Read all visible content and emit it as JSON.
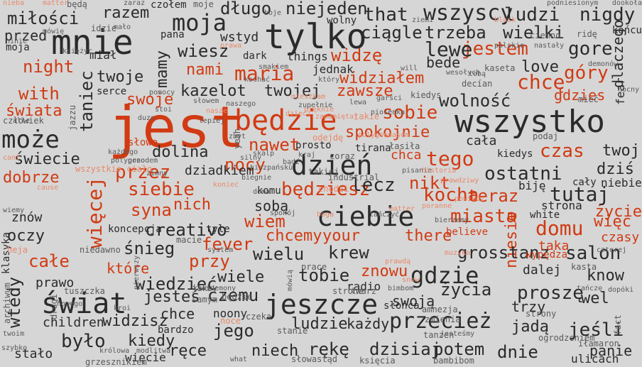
{
  "colors": {
    "background": "#d6d6d6",
    "accent": "#d13a12",
    "dark": "#2b2b2b",
    "light_dark": "#5a5a5a",
    "light_accent": "#e8896a"
  },
  "words": [
    {
      "text": "jest",
      "color": "accent"
    },
    {
      "text": "mnie",
      "color": "dark"
    },
    {
      "text": "tylko",
      "color": "dark"
    },
    {
      "text": "wszystko",
      "color": "dark"
    },
    {
      "text": "będzie",
      "color": "accent"
    },
    {
      "text": "dzień",
      "color": "dark"
    },
    {
      "text": "ciebie",
      "color": "dark"
    },
    {
      "text": "świat",
      "color": "dark"
    },
    {
      "text": "jeszcze",
      "color": "dark"
    },
    {
      "text": "gdzie",
      "color": "dark"
    },
    {
      "text": "przecież",
      "color": "dark"
    },
    {
      "text": "może",
      "color": "dark"
    },
    {
      "text": "moja",
      "color": "dark"
    },
    {
      "text": "wszyscy",
      "color": "dark"
    },
    {
      "text": "długo",
      "color": "dark"
    },
    {
      "text": "niejeden",
      "color": "dark"
    },
    {
      "text": "miłości",
      "color": "dark"
    },
    {
      "text": "razem",
      "color": "dark"
    },
    {
      "text": "that",
      "color": "dark"
    },
    {
      "text": "ludzi",
      "color": "dark"
    },
    {
      "text": "nigdy",
      "color": "dark"
    },
    {
      "text": "jestem",
      "color": "accent"
    },
    {
      "text": "lewe",
      "color": "dark"
    },
    {
      "text": "ciągle",
      "color": "dark"
    },
    {
      "text": "trzeba",
      "color": "dark"
    },
    {
      "text": "wielki",
      "color": "dark"
    },
    {
      "text": "gore",
      "color": "dark"
    },
    {
      "text": "przed",
      "color": "dark"
    },
    {
      "text": "wiesz",
      "color": "dark"
    },
    {
      "text": "widzę",
      "color": "accent"
    },
    {
      "text": "night",
      "color": "accent"
    },
    {
      "text": "maria",
      "color": "accent"
    },
    {
      "text": "nami",
      "color": "accent"
    },
    {
      "text": "twoje",
      "color": "dark"
    },
    {
      "text": "mamy",
      "color": "dark"
    },
    {
      "text": "widziałem",
      "color": "accent"
    },
    {
      "text": "chcę",
      "color": "accent"
    },
    {
      "text": "góry",
      "color": "accent"
    },
    {
      "text": "love",
      "color": "dark"
    },
    {
      "text": "dlaczego",
      "color": "dark"
    },
    {
      "text": "with",
      "color": "accent"
    },
    {
      "text": "taniec",
      "color": "dark"
    },
    {
      "text": "kazelot",
      "color": "dark"
    },
    {
      "text": "twojej",
      "color": "dark"
    },
    {
      "text": "zawsze",
      "color": "accent"
    },
    {
      "text": "wolność",
      "color": "dark"
    },
    {
      "text": "gdzies",
      "color": "accent"
    },
    {
      "text": "świata",
      "color": "accent"
    },
    {
      "text": "swoje",
      "color": "accent"
    },
    {
      "text": "sobie",
      "color": "accent"
    },
    {
      "text": "spokojnie",
      "color": "accent"
    },
    {
      "text": "czas",
      "color": "accent"
    },
    {
      "text": "twoj",
      "color": "dark"
    },
    {
      "text": "nawet",
      "color": "accent"
    },
    {
      "text": "dolina",
      "color": "dark"
    },
    {
      "text": "tego",
      "color": "accent"
    },
    {
      "text": "świecie",
      "color": "dark"
    },
    {
      "text": "nocy",
      "color": "accent"
    },
    {
      "text": "chca",
      "color": "accent"
    },
    {
      "text": "ostatni",
      "color": "dark"
    },
    {
      "text": "dziś",
      "color": "dark"
    },
    {
      "text": "przez",
      "color": "accent"
    },
    {
      "text": "siebie",
      "color": "accent"
    },
    {
      "text": "będziesz",
      "color": "accent"
    },
    {
      "text": "lecz",
      "color": "dark"
    },
    {
      "text": "nikt",
      "color": "accent"
    },
    {
      "text": "kocha",
      "color": "accent"
    },
    {
      "text": "teraz",
      "color": "accent"
    },
    {
      "text": "tutaj",
      "color": "dark"
    },
    {
      "text": "dobrze",
      "color": "accent"
    },
    {
      "text": "więcej",
      "color": "accent"
    },
    {
      "text": "syna",
      "color": "accent"
    },
    {
      "text": "nich",
      "color": "accent"
    },
    {
      "text": "sobą",
      "color": "dark"
    },
    {
      "text": "miasta",
      "color": "accent"
    },
    {
      "text": "życie",
      "color": "accent"
    },
    {
      "text": "znów",
      "color": "dark"
    },
    {
      "text": "creativo",
      "color": "dark"
    },
    {
      "text": "wiem",
      "color": "accent"
    },
    {
      "text": "domu",
      "color": "accent"
    },
    {
      "text": "więc",
      "color": "accent"
    },
    {
      "text": "oczy",
      "color": "dark"
    },
    {
      "text": "chcemy",
      "color": "accent"
    },
    {
      "text": "your",
      "color": "accent"
    },
    {
      "text": "there",
      "color": "accent"
    },
    {
      "text": "niesie",
      "color": "accent"
    },
    {
      "text": "czasy",
      "color": "accent"
    },
    {
      "text": "śnieg",
      "color": "dark"
    },
    {
      "text": "fever",
      "color": "accent"
    },
    {
      "text": "przy",
      "color": "accent"
    },
    {
      "text": "krew",
      "color": "dark"
    },
    {
      "text": "grosstanz",
      "color": "dark"
    },
    {
      "text": "taka",
      "color": "accent"
    },
    {
      "text": "salon",
      "color": "dark"
    },
    {
      "text": "całe",
      "color": "accent"
    },
    {
      "text": "które",
      "color": "accent"
    },
    {
      "text": "wielu",
      "color": "dark"
    },
    {
      "text": "znowu",
      "color": "accent"
    },
    {
      "text": "dalej",
      "color": "dark"
    },
    {
      "text": "know",
      "color": "dark"
    },
    {
      "text": "prawo",
      "color": "dark"
    },
    {
      "text": "wiedzieć",
      "color": "dark"
    },
    {
      "text": "wiele",
      "color": "dark"
    },
    {
      "text": "tobie",
      "color": "dark"
    },
    {
      "text": "życia",
      "color": "dark"
    },
    {
      "text": "proszę",
      "color": "dark"
    },
    {
      "text": "wel",
      "color": "dark"
    },
    {
      "text": "wtedy",
      "color": "dark"
    },
    {
      "text": "jesteś",
      "color": "dark"
    },
    {
      "text": "czemu",
      "color": "dark"
    },
    {
      "text": "swoją",
      "color": "dark"
    },
    {
      "text": "trzy",
      "color": "dark"
    },
    {
      "text": "widzisz",
      "color": "dark"
    },
    {
      "text": "chce",
      "color": "dark"
    },
    {
      "text": "jego",
      "color": "dark"
    },
    {
      "text": "ludzie",
      "color": "dark"
    },
    {
      "text": "każdy",
      "color": "dark"
    },
    {
      "text": "jadą",
      "color": "dark"
    },
    {
      "text": "jeśli",
      "color": "dark"
    },
    {
      "text": "było",
      "color": "dark"
    },
    {
      "text": "kiedy",
      "color": "dark"
    },
    {
      "text": "ręce",
      "color": "dark"
    },
    {
      "text": "niech",
      "color": "dark"
    },
    {
      "text": "rękę",
      "color": "dark"
    },
    {
      "text": "dzisiaj",
      "color": "dark"
    },
    {
      "text": "potem",
      "color": "dark"
    },
    {
      "text": "dnie",
      "color": "dark"
    },
    {
      "text": "panie",
      "color": "dark"
    },
    {
      "text": "stało",
      "color": "dark"
    },
    {
      "text": "więcie",
      "color": "dark"
    },
    {
      "text": "ulicach",
      "color": "dark"
    },
    {
      "text": "children",
      "color": "dark"
    },
    {
      "text": "bardzo",
      "color": "dark"
    },
    {
      "text": "noony",
      "color": "dark"
    },
    {
      "text": "radio",
      "color": "dark"
    },
    {
      "text": "końcu",
      "color": "dark"
    },
    {
      "text": "miał",
      "color": "dark"
    },
    {
      "text": "serce",
      "color": "dark"
    },
    {
      "text": "pana",
      "color": "dark"
    },
    {
      "text": "wstyd",
      "color": "dark"
    },
    {
      "text": "dark",
      "color": "dark"
    },
    {
      "text": "things",
      "color": "dark"
    },
    {
      "text": "jednak",
      "color": "dark"
    },
    {
      "text": "bede",
      "color": "dark"
    },
    {
      "text": "fear",
      "color": "dark"
    },
    {
      "text": "dziadkiem",
      "color": "dark"
    },
    {
      "text": "tyle",
      "color": "dark"
    },
    {
      "text": "niebie",
      "color": "dark"
    },
    {
      "text": "cała",
      "color": "dark"
    },
    {
      "text": "kiedys",
      "color": "dark"
    },
    {
      "text": "biję",
      "color": "dark"
    },
    {
      "text": "cały",
      "color": "dark"
    },
    {
      "text": "strona",
      "color": "dark"
    },
    {
      "text": "white",
      "color": "dark"
    },
    {
      "text": "wiemy",
      "color": "dark"
    },
    {
      "text": "koncepcja",
      "color": "dark"
    },
    {
      "text": "macie",
      "color": "dark"
    },
    {
      "text": "system",
      "color": "dark"
    },
    {
      "text": "niedawno",
      "color": "dark"
    },
    {
      "text": "klasyka",
      "color": "dark"
    },
    {
      "text": "moja",
      "color": "dark"
    },
    {
      "text": "tirana",
      "color": "dark"
    },
    {
      "text": "będą",
      "color": "dark"
    },
    {
      "text": "czołem",
      "color": "dark"
    },
    {
      "text": "idzie",
      "color": "dark"
    },
    {
      "text": "mało",
      "color": "dark"
    },
    {
      "text": "moje",
      "color": "dark"
    },
    {
      "text": "wolny",
      "color": "dark"
    },
    {
      "text": "boje",
      "color": "dark"
    },
    {
      "text": "ziemi",
      "color": "dark"
    },
    {
      "text": "polskie",
      "color": "dark"
    },
    {
      "text": "ciemno",
      "color": "dark"
    },
    {
      "text": "ridę",
      "color": "dark"
    },
    {
      "text": "decían",
      "color": "dark"
    },
    {
      "text": "kaseta",
      "color": "dark"
    },
    {
      "text": "mieć",
      "color": "dark"
    },
    {
      "text": "bądź",
      "color": "dark"
    },
    {
      "text": "prosto",
      "color": "dark"
    },
    {
      "text": "kraj",
      "color": "dark"
    },
    {
      "text": "coraz",
      "color": "dark"
    },
    {
      "text": "takiej",
      "color": "dark"
    },
    {
      "text": "industrial",
      "color": "dark"
    },
    {
      "text": "chodzi",
      "color": "accent"
    },
    {
      "text": "komu",
      "color": "dark"
    },
    {
      "text": "podaj",
      "color": "dark"
    },
    {
      "text": "słowo",
      "color": "accent"
    },
    {
      "text": "wszystkie ciało",
      "color": "accent"
    },
    {
      "text": "cause",
      "color": "accent"
    },
    {
      "text": "heja",
      "color": "accent"
    },
    {
      "text": "believe",
      "color": "accent"
    },
    {
      "text": "wypędza",
      "color": "accent"
    },
    {
      "text": "odejdę",
      "color": "accent"
    },
    {
      "text": "takie",
      "color": "accent"
    },
    {
      "text": "kiedys",
      "color": "dark"
    },
    {
      "text": "jakby",
      "color": "dark"
    },
    {
      "text": "będzie",
      "color": "dark"
    },
    {
      "text": "noce",
      "color": "accent"
    },
    {
      "text": "stanie",
      "color": "dark"
    },
    {
      "text": "bimbom",
      "color": "dark"
    },
    {
      "text": "słońca",
      "color": "dark"
    },
    {
      "text": "amnezja",
      "color": "dark"
    },
    {
      "text": "zmienia",
      "color": "dark"
    },
    {
      "text": "strony",
      "color": "dark"
    },
    {
      "text": "tanzen",
      "color": "dark"
    },
    {
      "text": "jesteśmy",
      "color": "dark"
    },
    {
      "text": "ogrodzeniem",
      "color": "dark"
    },
    {
      "text": "słowastąd",
      "color": "dark"
    },
    {
      "text": "księcia",
      "color": "dark"
    },
    {
      "text": "bambibom",
      "color": "dark"
    },
    {
      "text": "what",
      "color": "dark"
    },
    {
      "text": "królowa",
      "color": "dark"
    },
    {
      "text": "modlitwa",
      "color": "dark"
    },
    {
      "text": "grzesznikiem",
      "color": "dark"
    },
    {
      "text": "czeka",
      "color": "dark"
    },
    {
      "text": "strone",
      "color": "dark"
    },
    {
      "text": "twarz",
      "color": "dark"
    },
    {
      "text": "fact",
      "color": "dark"
    },
    {
      "text": "iłamaron",
      "color": "dark"
    },
    {
      "text": "kasta",
      "color": "dark"
    },
    {
      "text": "czterej",
      "color": "dark"
    },
    {
      "text": "tańczę",
      "color": "dark"
    },
    {
      "text": "dopóki",
      "color": "dark"
    },
    {
      "text": "szybko",
      "color": "dark"
    },
    {
      "text": "twoim",
      "color": "dark"
    },
    {
      "text": "archiwum",
      "color": "dark"
    },
    {
      "text": "drugi",
      "color": "dark"
    },
    {
      "text": "kroi",
      "color": "dark"
    },
    {
      "text": "tuszczka",
      "color": "dark"
    },
    {
      "text": "nowego",
      "color": "dark"
    },
    {
      "text": "pierwszy",
      "color": "dark"
    },
    {
      "text": "ktośdemony",
      "color": "dark"
    },
    {
      "text": "samym",
      "color": "dark"
    },
    {
      "text": "mówią",
      "color": "dark"
    },
    {
      "text": "prace",
      "color": "dark"
    },
    {
      "text": "snow",
      "color": "accent"
    },
    {
      "text": "cant",
      "color": "accent"
    },
    {
      "text": "alle",
      "color": "dark"
    },
    {
      "text": "człowiek",
      "color": "dark"
    },
    {
      "text": "black",
      "color": "accent"
    },
    {
      "text": "prawdą",
      "color": "accent"
    },
    {
      "text": "nieba",
      "color": "accent"
    },
    {
      "text": "matter",
      "color": "accent"
    },
    {
      "text": "zaraz",
      "color": "dark"
    },
    {
      "text": "ninie",
      "color": "dark"
    },
    {
      "text": "mówię",
      "color": "dark"
    },
    {
      "text": "księżyc",
      "color": "dark"
    },
    {
      "text": "prawa",
      "color": "accent"
    },
    {
      "text": "smakiem",
      "color": "dark"
    },
    {
      "text": "kochać",
      "color": "dark"
    },
    {
      "text": "który",
      "color": "dark"
    },
    {
      "text": "will",
      "color": "dark"
    },
    {
      "text": "wesołych",
      "color": "dark"
    },
    {
      "text": "tobą",
      "color": "dark"
    },
    {
      "text": "nastały",
      "color": "dark"
    },
    {
      "text": "podniesionym",
      "color": "dark"
    },
    {
      "text": "demonów",
      "color": "dark"
    },
    {
      "text": "dookoła",
      "color": "dark"
    },
    {
      "text": "nocny",
      "color": "dark"
    },
    {
      "text": "jazzu",
      "color": "dark"
    },
    {
      "text": "duzo",
      "color": "dark"
    },
    {
      "text": "polygono",
      "color": "dark"
    },
    {
      "text": "przodem",
      "color": "dark"
    },
    {
      "text": "zimny",
      "color": "dark"
    },
    {
      "text": "każdego",
      "color": "dark"
    },
    {
      "text": "pomocy",
      "color": "dark"
    },
    {
      "text": "słowem",
      "color": "dark"
    },
    {
      "text": "stoi",
      "color": "dark"
    },
    {
      "text": "zbyt",
      "color": "dark"
    },
    {
      "text": "yeah",
      "color": "dark"
    },
    {
      "text": "silny",
      "color": "dark"
    },
    {
      "text": "skalp",
      "color": "dark"
    },
    {
      "text": "hiszpańsku",
      "color": "dark"
    },
    {
      "text": "dzieci",
      "color": "accent"
    },
    {
      "text": "pięknie",
      "color": "accent"
    },
    {
      "text": "zapamiętaj",
      "color": "accent"
    },
    {
      "text": "polygono",
      "color": "accent"
    },
    {
      "text": "czasem",
      "color": "accent"
    },
    {
      "text": "łasiła",
      "color": "dark"
    },
    {
      "text": "pisanie",
      "color": "dark"
    },
    {
      "text": "historia",
      "color": "accent"
    },
    {
      "text": "prawdziwy",
      "color": "accent"
    },
    {
      "text": "powiedz",
      "color": "accent"
    },
    {
      "text": "piosenka",
      "color": "dark"
    },
    {
      "text": "garści",
      "color": "dark"
    },
    {
      "text": "lewa",
      "color": "dark"
    },
    {
      "text": "zupełnie",
      "color": "dark"
    },
    {
      "text": "mieszkam",
      "color": "accent"
    },
    {
      "text": "naszego",
      "color": "dark"
    },
    {
      "text": "nasze",
      "color": "accent"
    },
    {
      "text": "lepiej",
      "color": "dark"
    },
    {
      "text": "biegnie",
      "color": "dark"
    },
    {
      "text": "koniec",
      "color": "accent"
    },
    {
      "text": "doma",
      "color": "dark"
    },
    {
      "text": "spokój",
      "color": "dark"
    },
    {
      "text": "boga",
      "color": "accent"
    },
    {
      "text": "tańczyć",
      "color": "dark"
    },
    {
      "text": "matter",
      "color": "accent"
    },
    {
      "text": "poranne",
      "color": "accent"
    },
    {
      "text": "bierzemy",
      "color": "dark"
    },
    {
      "text": "muzyka",
      "color": "accent"
    },
    {
      "text": "rzeczy",
      "color": "accent"
    },
    {
      "text": "ziemia",
      "color": "accent"
    },
    {
      "text": "armia",
      "color": "dark"
    },
    {
      "text": "dzwon",
      "color": "accent"
    },
    {
      "text": "celiny",
      "color": "dark"
    },
    {
      "text": "tysiąc",
      "color": "accent"
    },
    {
      "text": "mozesz",
      "color": "accent"
    },
    {
      "text": "loff",
      "color": "accent"
    },
    {
      "text": "mysliwy",
      "color": "dark"
    },
    {
      "text": "pojdę",
      "color": "accent"
    },
    {
      "text": "każdym",
      "color": "accent"
    },
    {
      "text": "zapomnieć",
      "color": "dark"
    },
    {
      "text": "wódka",
      "color": "accent"
    },
    {
      "text": "mieszkać",
      "color": "dark"
    },
    {
      "text": "chciałbym",
      "color": "dark"
    }
  ]
}
